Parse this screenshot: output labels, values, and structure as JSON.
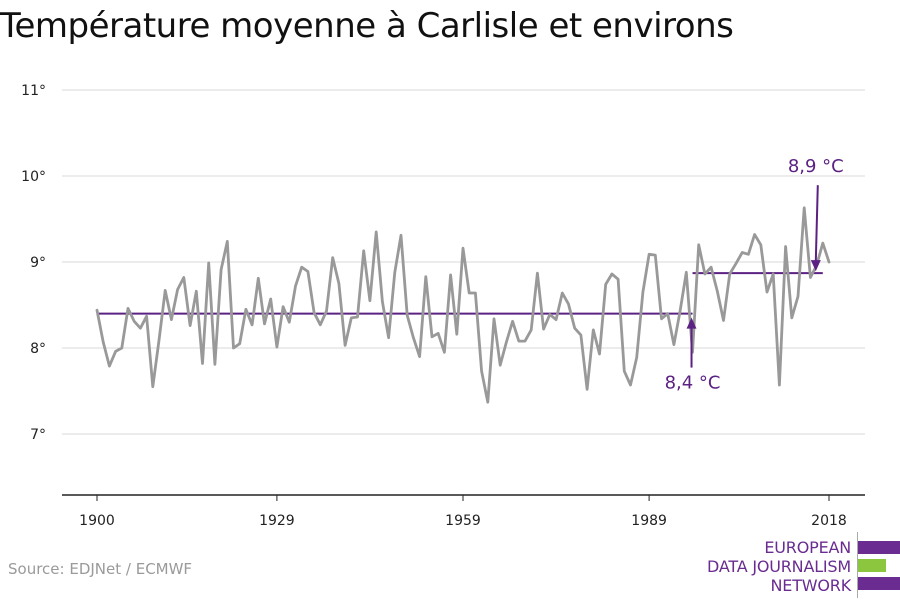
{
  "chart_data": {
    "type": "line",
    "title": "Température moyenne à Carlisle et environs",
    "xlabel": "",
    "ylabel": "",
    "xlim": [
      1900,
      2018
    ],
    "ylim": [
      6.5,
      11
    ],
    "x_ticks": [
      1900,
      1929,
      1959,
      1989,
      2018
    ],
    "y_ticks": [
      {
        "value": 7,
        "label": "7°"
      },
      {
        "value": 8,
        "label": "8°"
      },
      {
        "value": 9,
        "label": "9°"
      },
      {
        "value": 10,
        "label": "10°"
      },
      {
        "value": 11,
        "label": "11°"
      }
    ],
    "grid": true,
    "colors": {
      "series": "#999999",
      "average": "#5b2183",
      "grid": "#d9d9d9",
      "axis": "#222222"
    },
    "series": [
      {
        "x": [
          1900,
          1901,
          1902,
          1903,
          1904,
          1905,
          1906,
          1907,
          1908,
          1909,
          1910,
          1911,
          1912,
          1913,
          1914,
          1915,
          1916,
          1917,
          1918,
          1919,
          1920,
          1921,
          1922,
          1923,
          1924,
          1925,
          1926,
          1927,
          1928,
          1929,
          1930,
          1931,
          1932,
          1933,
          1934,
          1935,
          1936,
          1937,
          1938,
          1939,
          1940,
          1941,
          1942,
          1943,
          1944,
          1945,
          1946,
          1947,
          1948,
          1949,
          1950,
          1951,
          1952,
          1953,
          1954,
          1955,
          1956,
          1957,
          1958,
          1959,
          1960,
          1961,
          1962,
          1963,
          1964,
          1965,
          1966,
          1967,
          1968,
          1969,
          1970,
          1971,
          1972,
          1973,
          1974,
          1975,
          1976,
          1977,
          1978,
          1979,
          1980,
          1981,
          1982,
          1983,
          1984,
          1985,
          1986,
          1987,
          1988,
          1989,
          1990,
          1991,
          1992,
          1993,
          1994,
          1995,
          1996,
          1997,
          1998,
          1999,
          2000,
          2001,
          2002,
          2003,
          2004,
          2005,
          2006,
          2007,
          2008,
          2009,
          2010,
          2011,
          2012,
          2013,
          2014,
          2015,
          2016,
          2017,
          2018
        ],
        "values": [
          8.44,
          8.07,
          7.79,
          7.96,
          8.0,
          8.46,
          8.31,
          8.23,
          8.37,
          7.55,
          8.09,
          8.67,
          8.33,
          8.68,
          8.82,
          8.26,
          8.66,
          7.82,
          8.99,
          7.81,
          8.91,
          9.24,
          8.0,
          8.05,
          8.45,
          8.27,
          8.81,
          8.28,
          8.57,
          8.01,
          8.48,
          8.3,
          8.72,
          8.94,
          8.89,
          8.41,
          8.27,
          8.43,
          9.05,
          8.75,
          8.03,
          8.35,
          8.36,
          9.13,
          8.55,
          9.35,
          8.54,
          8.12,
          8.88,
          9.31,
          8.38,
          8.12,
          7.9,
          8.83,
          8.13,
          8.17,
          7.95,
          8.85,
          8.16,
          9.16,
          8.64,
          8.64,
          7.73,
          7.37,
          8.34,
          7.8,
          8.07,
          8.31,
          8.08,
          8.08,
          8.21,
          8.87,
          8.22,
          8.39,
          8.33,
          8.64,
          8.51,
          8.23,
          8.15,
          7.52,
          8.21,
          7.93,
          8.74,
          8.86,
          8.8,
          7.73,
          7.57,
          7.89,
          8.65,
          9.09,
          9.08,
          8.34,
          8.4,
          8.04,
          8.43,
          8.88,
          7.95,
          9.2,
          8.86,
          8.94,
          8.66,
          8.32,
          8.86,
          8.98,
          9.11,
          9.09,
          9.32,
          9.2,
          8.65,
          8.86,
          7.57,
          9.18,
          8.35,
          8.6,
          9.63,
          8.82,
          8.96,
          9.22,
          9.0
        ]
      }
    ],
    "annotations": [
      {
        "label": "8,4 °C",
        "value": 8.4,
        "x_start": 1900,
        "x_end": 1996
      },
      {
        "label": "8,9 °C",
        "value": 8.87,
        "x_start": 1996,
        "x_end": 2017
      }
    ]
  },
  "source": "Source: EDJNet / ECMWF",
  "logo": {
    "lines": [
      "EUROPEAN",
      "DATA JOURNALISM",
      "NETWORK"
    ],
    "colors": {
      "text": "#6a2c91",
      "bar_purple": "#6a2c91",
      "bar_green": "#8cc63f"
    }
  }
}
